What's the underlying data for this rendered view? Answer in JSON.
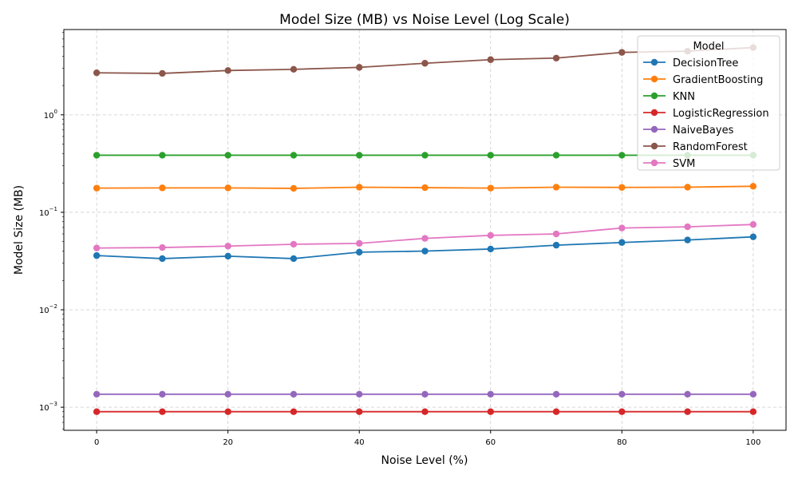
{
  "chart_data": {
    "type": "line",
    "title": "Model Size (MB) vs Noise Level (Log Scale)",
    "xlabel": "Noise Level (%)",
    "ylabel": "Model Size (MB)",
    "yscale": "log",
    "xlim": [
      -5,
      105
    ],
    "ylim": [
      0.00058,
      7.5
    ],
    "grid": true,
    "legend_title": "Model",
    "legend_position": "top-right",
    "x": [
      0,
      10,
      20,
      30,
      40,
      50,
      60,
      70,
      80,
      90,
      100
    ],
    "x_ticks": [
      0,
      20,
      40,
      60,
      80,
      100
    ],
    "x_tick_labels": [
      "0",
      "20",
      "40",
      "60",
      "80",
      "100"
    ],
    "y_ticks": [
      0.001,
      0.01,
      0.1,
      1
    ],
    "y_tick_base": [
      "10",
      "10",
      "10",
      "10"
    ],
    "y_tick_exp": [
      "−3",
      "−2",
      "−1",
      "0"
    ],
    "series": [
      {
        "name": "DecisionTree",
        "color": "#1f77b4",
        "values": [
          0.036,
          0.0335,
          0.0355,
          0.0335,
          0.039,
          0.04,
          0.042,
          0.046,
          0.049,
          0.052,
          0.056
        ]
      },
      {
        "name": "GradientBoosting",
        "color": "#ff7f0e",
        "values": [
          0.177,
          0.178,
          0.178,
          0.176,
          0.181,
          0.179,
          0.177,
          0.181,
          0.18,
          0.181,
          0.185
        ]
      },
      {
        "name": "KNN",
        "color": "#2ca02c",
        "values": [
          0.385,
          0.385,
          0.385,
          0.385,
          0.385,
          0.385,
          0.385,
          0.385,
          0.385,
          0.385,
          0.385
        ]
      },
      {
        "name": "LogisticRegression",
        "color": "#d62728",
        "values": [
          0.0009,
          0.0009,
          0.0009,
          0.0009,
          0.0009,
          0.0009,
          0.0009,
          0.0009,
          0.0009,
          0.0009,
          0.0009
        ]
      },
      {
        "name": "NaiveBayes",
        "color": "#9467bd",
        "values": [
          0.00136,
          0.00136,
          0.00136,
          0.00136,
          0.00136,
          0.00136,
          0.00136,
          0.00136,
          0.00136,
          0.00136,
          0.00136
        ]
      },
      {
        "name": "RandomForest",
        "color": "#8c564b",
        "values": [
          2.7,
          2.66,
          2.85,
          2.93,
          3.07,
          3.38,
          3.68,
          3.82,
          4.37,
          4.5,
          4.9
        ]
      },
      {
        "name": "SVM",
        "color": "#e377c2",
        "values": [
          0.043,
          0.0435,
          0.045,
          0.047,
          0.048,
          0.054,
          0.058,
          0.06,
          0.069,
          0.071,
          0.075
        ]
      }
    ]
  }
}
